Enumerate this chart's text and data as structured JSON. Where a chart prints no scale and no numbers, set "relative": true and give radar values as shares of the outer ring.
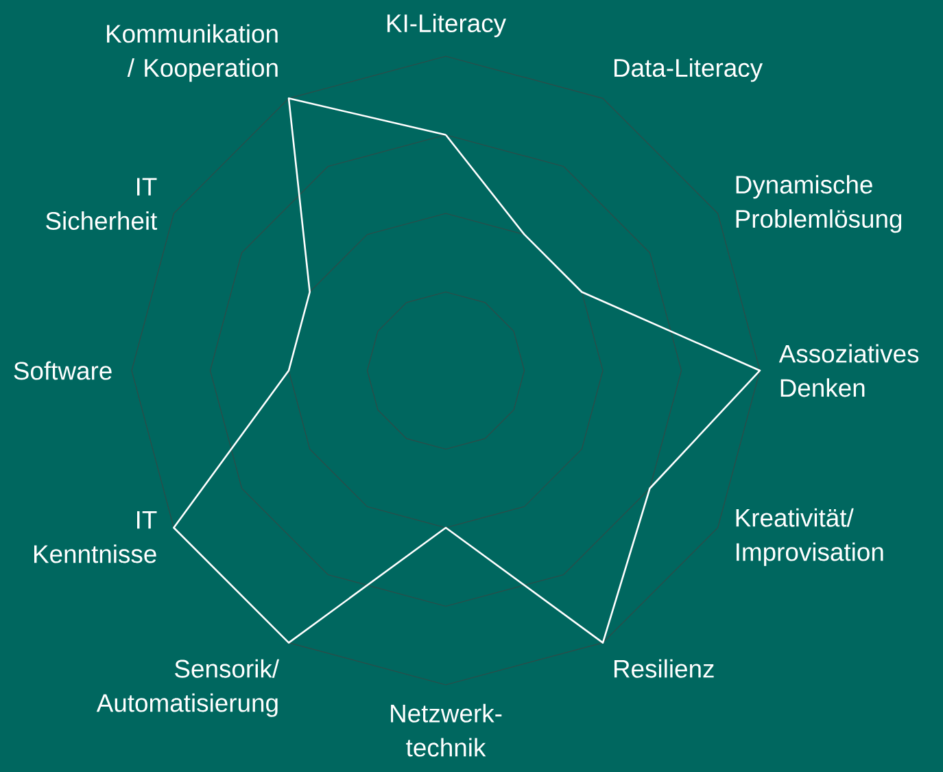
{
  "chart_data": {
    "type": "radar",
    "relative": true,
    "grid": true,
    "marker": "none",
    "line_style": "solid",
    "categories": [
      "KI-Literacy",
      "Data-Literacy",
      "Dynamische Problemlösung",
      "Assoziatives Denken",
      "Kreativität/ Improvisation",
      "Resilienz",
      "Netzwerk-technik",
      "Sensorik/ Automatisierung",
      "IT Kenntnisse",
      "Software",
      "IT Sicherheit",
      "Kommunikation / Kooperation"
    ],
    "series": [
      {
        "color": "#ffffff",
        "values": [
          0.75,
          0.5,
          0.5,
          1,
          0.75,
          1,
          0.5,
          1,
          1,
          0.5,
          0.5,
          1
        ]
      }
    ]
  }
}
